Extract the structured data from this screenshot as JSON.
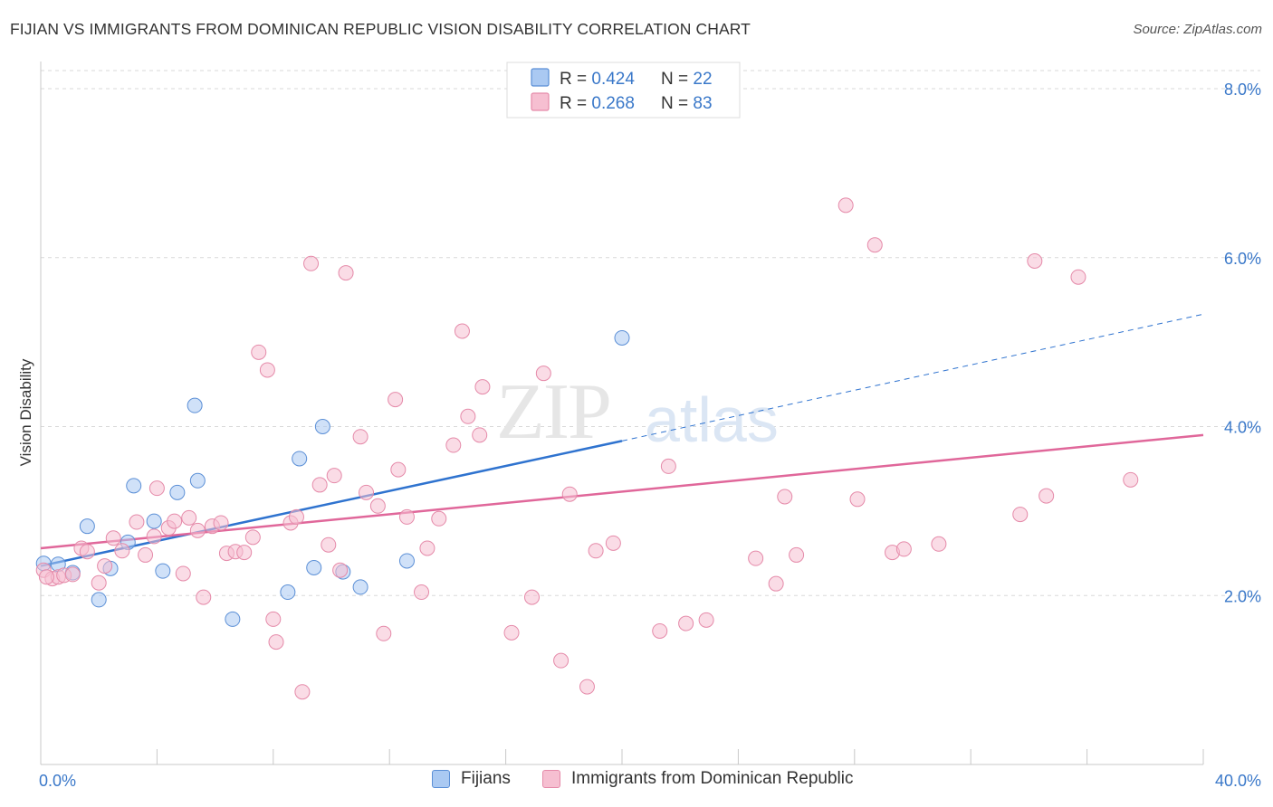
{
  "title": "FIJIAN VS IMMIGRANTS FROM DOMINICAN REPUBLIC VISION DISABILITY CORRELATION CHART",
  "source": "Source: ZipAtlas.com",
  "watermark": {
    "zip": "ZIP",
    "atlas": "atlas"
  },
  "colors": {
    "blue_fill": "#aac9f2",
    "blue_stroke": "#5b8fd6",
    "blue_line": "#2f73cf",
    "pink_fill": "#f6bfd1",
    "pink_stroke": "#e58aa9",
    "pink_line": "#e0679a",
    "axis_label": "#3a78c9",
    "grid": "#d9d9d9"
  },
  "chart_data": {
    "type": "scatter",
    "ylabel": "Vision Disability",
    "xlim": [
      0,
      40
    ],
    "ylim": [
      0,
      8.3
    ],
    "x_tick_labels": [
      "0.0%",
      "40.0%"
    ],
    "y_ticks": [
      2,
      4,
      6,
      8
    ],
    "y_tick_labels": [
      "2.0%",
      "4.0%",
      "6.0%",
      "8.0%"
    ],
    "grid": true,
    "legend": {
      "placement": "top-center",
      "rows": [
        {
          "r_label": "R = ",
          "r_value": "0.424",
          "n_label": "N = ",
          "n_value": "22"
        },
        {
          "r_label": "R = ",
          "r_value": "0.268",
          "n_label": "N = ",
          "n_value": "83"
        }
      ]
    },
    "series": [
      {
        "name": "Fijians",
        "color": "blue",
        "points": [
          [
            0.1,
            2.38
          ],
          [
            0.6,
            2.37
          ],
          [
            1.1,
            2.27
          ],
          [
            1.6,
            2.82
          ],
          [
            2.0,
            1.95
          ],
          [
            2.4,
            2.32
          ],
          [
            3.0,
            2.63
          ],
          [
            3.2,
            3.3
          ],
          [
            3.9,
            2.88
          ],
          [
            4.2,
            2.29
          ],
          [
            4.7,
            3.22
          ],
          [
            5.3,
            4.25
          ],
          [
            5.4,
            3.36
          ],
          [
            6.6,
            1.72
          ],
          [
            8.5,
            2.04
          ],
          [
            8.9,
            3.62
          ],
          [
            9.4,
            2.33
          ],
          [
            9.7,
            4.0
          ],
          [
            10.4,
            2.28
          ],
          [
            11.0,
            2.1
          ],
          [
            12.6,
            2.41
          ],
          [
            20.0,
            5.05
          ]
        ],
        "trend": {
          "x0": 0,
          "y0": 2.35,
          "x1": 20,
          "y1": 3.83,
          "dash_to_x": 40,
          "dash_to_y": 5.33
        }
      },
      {
        "name": "Immigrants from Dominican Republic",
        "color": "pink",
        "points": [
          [
            0.1,
            2.3
          ],
          [
            0.4,
            2.2
          ],
          [
            0.6,
            2.22
          ],
          [
            0.8,
            2.24
          ],
          [
            1.1,
            2.25
          ],
          [
            1.4,
            2.56
          ],
          [
            1.6,
            2.52
          ],
          [
            2.0,
            2.15
          ],
          [
            2.2,
            2.35
          ],
          [
            2.5,
            2.68
          ],
          [
            2.8,
            2.53
          ],
          [
            3.3,
            2.87
          ],
          [
            3.6,
            2.48
          ],
          [
            3.9,
            2.7
          ],
          [
            4.0,
            3.27
          ],
          [
            4.4,
            2.8
          ],
          [
            4.6,
            2.88
          ],
          [
            4.9,
            2.26
          ],
          [
            5.1,
            2.92
          ],
          [
            5.4,
            2.77
          ],
          [
            5.6,
            1.98
          ],
          [
            5.9,
            2.82
          ],
          [
            6.2,
            2.86
          ],
          [
            6.4,
            2.5
          ],
          [
            6.7,
            2.52
          ],
          [
            7.0,
            2.51
          ],
          [
            7.3,
            2.69
          ],
          [
            7.5,
            4.88
          ],
          [
            7.8,
            4.67
          ],
          [
            8.0,
            1.72
          ],
          [
            8.1,
            1.45
          ],
          [
            8.6,
            2.86
          ],
          [
            8.8,
            2.93
          ],
          [
            9.0,
            0.86
          ],
          [
            9.3,
            5.93
          ],
          [
            9.6,
            3.31
          ],
          [
            9.9,
            2.6
          ],
          [
            10.1,
            3.42
          ],
          [
            10.3,
            2.3
          ],
          [
            10.5,
            5.82
          ],
          [
            11.0,
            3.88
          ],
          [
            11.2,
            3.22
          ],
          [
            11.6,
            3.06
          ],
          [
            11.8,
            1.55
          ],
          [
            12.2,
            4.32
          ],
          [
            12.3,
            3.49
          ],
          [
            12.6,
            2.93
          ],
          [
            13.1,
            2.04
          ],
          [
            13.3,
            2.56
          ],
          [
            13.7,
            2.91
          ],
          [
            14.2,
            3.78
          ],
          [
            14.5,
            5.13
          ],
          [
            14.7,
            4.12
          ],
          [
            15.1,
            3.9
          ],
          [
            15.2,
            4.47
          ],
          [
            16.2,
            1.56
          ],
          [
            16.9,
            1.98
          ],
          [
            17.3,
            4.63
          ],
          [
            17.9,
            1.23
          ],
          [
            18.2,
            3.2
          ],
          [
            18.8,
            0.92
          ],
          [
            19.1,
            2.53
          ],
          [
            19.7,
            2.62
          ],
          [
            21.3,
            1.58
          ],
          [
            21.6,
            3.53
          ],
          [
            22.2,
            1.67
          ],
          [
            22.9,
            1.71
          ],
          [
            24.6,
            2.44
          ],
          [
            25.3,
            2.14
          ],
          [
            25.6,
            3.17
          ],
          [
            26.0,
            2.48
          ],
          [
            27.7,
            6.62
          ],
          [
            28.1,
            3.14
          ],
          [
            28.7,
            6.15
          ],
          [
            29.3,
            2.51
          ],
          [
            29.7,
            2.55
          ],
          [
            30.9,
            2.61
          ],
          [
            33.7,
            2.96
          ],
          [
            34.2,
            5.96
          ],
          [
            34.6,
            3.18
          ],
          [
            35.7,
            5.77
          ],
          [
            37.5,
            3.37
          ],
          [
            0.2,
            2.22
          ]
        ],
        "trend": {
          "x0": 0,
          "y0": 2.56,
          "x1": 40,
          "y1": 3.9
        }
      }
    ]
  },
  "bottom_legend": [
    {
      "label": "Fijians",
      "color": "blue"
    },
    {
      "label": "Immigrants from Dominican Republic",
      "color": "pink"
    }
  ]
}
